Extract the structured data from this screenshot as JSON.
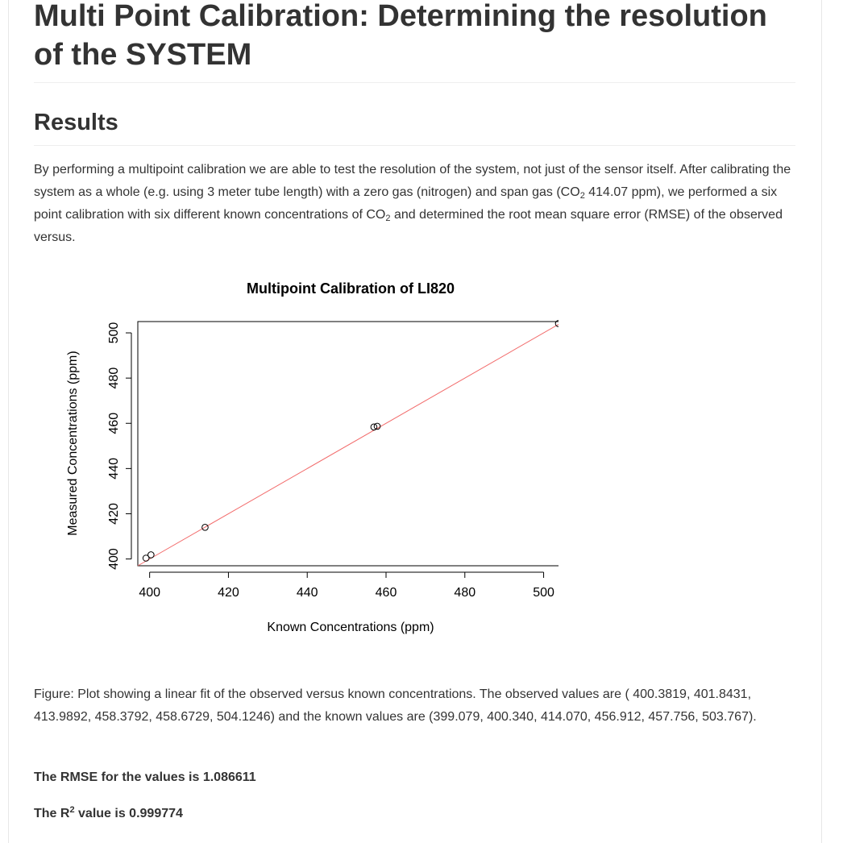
{
  "page": {
    "title": "Multi Point Calibration: Determining the resolution of the SYSTEM",
    "section_heading": "Results",
    "intro": {
      "part1": "By performing a multipoint calibration we are able to test the resolution of the system, not just of the sensor itself. After calibrating the system as a whole (e.g. using 3 meter tube length) with a zero gas (nitrogen) and span gas (CO",
      "sub1": "2",
      "part2": " 414.07 ppm), we performed a six point calibration with six different known concentrations of CO",
      "sub2": "2",
      "part3": " and determined the root mean square error (RMSE) of the observed versus."
    },
    "caption": "Figure: Plot showing a linear fit of the observed versus known concentrations. The observed values are ( 400.3819, 401.8431, 413.9892, 458.3792, 458.6729, 504.1246) and the known values are (399.079, 400.340, 414.070, 456.912, 457.756, 503.767).",
    "rmse_text": "The RMSE for the values is 1.086611",
    "r2": {
      "prefix": "The R",
      "sup": "2",
      "suffix": " value is 0.999774"
    }
  },
  "chart_data": {
    "type": "scatter",
    "title": "Multipoint Calibration of LI820",
    "xlabel": "Known Concentrations (ppm)",
    "ylabel": "Measured Concentrations (ppm)",
    "xlim": [
      397,
      505
    ],
    "ylim": [
      397,
      505
    ],
    "xticks": [
      400,
      420,
      440,
      460,
      480,
      500
    ],
    "yticks": [
      400,
      420,
      440,
      460,
      480,
      500
    ],
    "grid": false,
    "points": [
      {
        "x": 399.079,
        "y": 400.3819
      },
      {
        "x": 400.34,
        "y": 401.8431
      },
      {
        "x": 414.07,
        "y": 413.9892
      },
      {
        "x": 456.912,
        "y": 458.3792
      },
      {
        "x": 457.756,
        "y": 458.6729
      },
      {
        "x": 503.767,
        "y": 504.1246
      }
    ],
    "fit_line": {
      "slope": 1.0,
      "intercept": 0.0
    },
    "colors": {
      "points": "#000000",
      "fit_line": "#f26b6b",
      "axes": "#000000"
    }
  }
}
